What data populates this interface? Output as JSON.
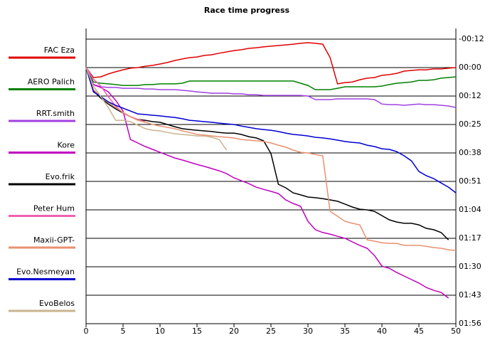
{
  "chart_data": {
    "type": "line",
    "title": "Race time progress",
    "x": [
      0,
      1,
      2,
      3,
      4,
      5,
      6,
      7,
      8,
      9,
      10,
      11,
      12,
      13,
      14,
      15,
      16,
      17,
      18,
      19,
      20,
      21,
      22,
      23,
      24,
      25,
      26,
      27,
      28,
      29,
      30,
      31,
      32,
      33,
      34,
      35,
      36,
      37,
      38,
      39,
      40,
      41,
      42,
      43,
      44,
      45,
      46,
      47,
      48,
      49,
      50
    ],
    "xlim": [
      0,
      50
    ],
    "xticks": [
      0,
      5,
      10,
      15,
      20,
      25,
      30,
      35,
      40,
      45,
      50
    ],
    "ylim": [
      -12.9,
      116.1
    ],
    "y_reversed": true,
    "y_axis_side": "right",
    "grid": true,
    "legend": "left",
    "yticks": [
      {
        "value": -12.9,
        "label": "-00:12"
      },
      {
        "value": 0,
        "label": "00:00"
      },
      {
        "value": 12.9,
        "label": "00:12"
      },
      {
        "value": 25.8,
        "label": "00:25"
      },
      {
        "value": 38.7,
        "label": "00:38"
      },
      {
        "value": 51.6,
        "label": "00:51"
      },
      {
        "value": 64.5,
        "label": "01:04"
      },
      {
        "value": 77.4,
        "label": "01:17"
      },
      {
        "value": 90.3,
        "label": "01:30"
      },
      {
        "value": 103.2,
        "label": "01:43"
      },
      {
        "value": 116.1,
        "label": "01:56"
      }
    ],
    "series": [
      {
        "name": "FAC Eza",
        "color": "#e00000",
        "values": [
          0,
          4.5,
          4.2,
          2.9,
          1.9,
          1.0,
          0.3,
          0,
          -0.6,
          -1.0,
          -1.6,
          -2.3,
          -3.2,
          -3.9,
          -4.5,
          -4.8,
          -5.5,
          -5.8,
          -6.5,
          -7.1,
          -7.7,
          -8.1,
          -8.7,
          -9.0,
          -9.4,
          -9.7,
          -10.0,
          -10.3,
          -10.6,
          -11.0,
          -11.3,
          -11.0,
          -10.6,
          -4.5,
          7.4,
          6.8,
          6.5,
          5.5,
          4.8,
          4.5,
          3.5,
          3.2,
          2.6,
          1.6,
          1.3,
          1.0,
          1.0,
          0.6,
          0.6,
          0.3,
          0
        ]
      },
      {
        "name": "AERO  Palich",
        "color": "#008000",
        "values": [
          0,
          6.5,
          7.1,
          7.4,
          7.7,
          8.1,
          8.1,
          8.1,
          7.7,
          7.7,
          7.4,
          7.4,
          7.4,
          7.1,
          6.1,
          6.1,
          6.1,
          6.1,
          6.1,
          6.1,
          6.1,
          6.1,
          6.1,
          6.1,
          6.1,
          6.1,
          6.1,
          6.1,
          6.1,
          7.1,
          8.1,
          10.0,
          10.0,
          10.0,
          9.4,
          8.7,
          8.7,
          8.7,
          8.7,
          8.7,
          8.4,
          7.7,
          7.1,
          6.8,
          6.5,
          5.8,
          5.8,
          5.5,
          4.8,
          4.5,
          4.2
        ]
      },
      {
        "name": "RRT.smith",
        "color": "#a040e0",
        "values": [
          0,
          7.7,
          8.7,
          9.0,
          9.0,
          9.4,
          9.4,
          9.4,
          9.7,
          9.7,
          10.0,
          10.0,
          10.0,
          10.3,
          10.6,
          11.0,
          11.3,
          11.6,
          11.6,
          11.6,
          11.9,
          11.9,
          12.3,
          12.3,
          12.6,
          12.6,
          12.6,
          12.6,
          12.6,
          12.6,
          12.9,
          14.5,
          14.5,
          14.5,
          14.2,
          14.2,
          14.2,
          14.2,
          14.2,
          14.5,
          16.5,
          16.8,
          16.8,
          17.1,
          16.8,
          16.5,
          16.8,
          16.8,
          17.1,
          17.4,
          18.1
        ]
      },
      {
        "name": "Kore",
        "color": "#c000c0",
        "values": [
          0,
          7.7,
          9.0,
          11.0,
          14.8,
          19.7,
          32.6,
          34.2,
          35.8,
          37.1,
          38.4,
          39.7,
          41.0,
          41.9,
          42.9,
          43.9,
          44.8,
          45.8,
          46.8,
          48.1,
          50.0,
          51.3,
          52.6,
          54.2,
          55.2,
          56.1,
          57.1,
          60.0,
          61.6,
          62.9,
          69.7,
          73.5,
          74.8,
          75.5,
          76.5,
          77.4,
          79.0,
          80.6,
          81.9,
          85.2,
          90.0,
          91.0,
          92.9,
          94.5,
          96.1,
          97.7,
          99.7,
          101.0,
          101.9,
          104.5,
          null
        ]
      },
      {
        "name": "Evo.frik",
        "color": "#000000",
        "values": [
          0,
          10.6,
          13.9,
          16.5,
          18.7,
          20.6,
          22.3,
          23.5,
          23.9,
          24.5,
          24.8,
          25.8,
          26.8,
          27.7,
          28.1,
          28.4,
          28.7,
          29.0,
          29.4,
          29.7,
          29.7,
          30.3,
          31.3,
          31.9,
          33.2,
          39.0,
          52.9,
          54.5,
          56.8,
          57.7,
          58.7,
          59.0,
          59.4,
          60.0,
          60.6,
          61.9,
          63.2,
          64.2,
          64.5,
          65.2,
          67.1,
          69.0,
          70.0,
          70.6,
          70.6,
          71.3,
          72.9,
          73.5,
          74.8,
          78.1,
          null
        ]
      },
      {
        "name": "Peter Hum",
        "color": "#f060b0",
        "values": [
          0,
          5.2,
          8.4,
          13.2,
          17.4,
          20.6,
          22.3,
          23.5,
          24.5,
          null,
          null,
          null,
          null,
          null,
          null,
          null,
          null,
          null,
          null,
          null,
          null,
          null,
          null,
          null,
          null,
          null,
          null,
          null,
          null,
          null,
          null,
          null,
          null,
          null,
          null,
          null,
          null,
          null,
          null,
          null,
          null,
          null,
          null,
          null,
          null,
          null,
          null,
          null,
          null,
          null,
          null
        ]
      },
      {
        "name": "Maxii-GPT-",
        "color": "#e89070",
        "values": [
          0,
          10.0,
          13.2,
          15.8,
          18.1,
          20.3,
          22.3,
          23.9,
          24.8,
          25.8,
          26.5,
          27.1,
          27.7,
          28.7,
          29.4,
          30.3,
          30.6,
          31.0,
          31.3,
          31.6,
          31.9,
          32.6,
          32.9,
          33.2,
          33.5,
          34.2,
          35.2,
          36.1,
          37.4,
          38.4,
          38.7,
          39.4,
          40.0,
          65.2,
          67.4,
          69.7,
          70.6,
          71.3,
          78.1,
          78.7,
          79.4,
          79.7,
          79.7,
          80.6,
          80.6,
          80.6,
          81.0,
          81.6,
          81.9,
          82.6,
          82.9
        ]
      },
      {
        "name": "Evo.Nesmeyan",
        "color": "#0000d0",
        "values": [
          0,
          11.0,
          13.2,
          15.5,
          17.1,
          18.4,
          19.7,
          21.0,
          21.3,
          21.6,
          21.9,
          22.3,
          22.6,
          23.2,
          23.9,
          24.2,
          24.5,
          24.8,
          25.2,
          25.5,
          25.8,
          26.5,
          27.1,
          27.7,
          28.1,
          28.4,
          29.0,
          29.7,
          30.3,
          30.6,
          31.0,
          31.6,
          31.9,
          32.3,
          32.9,
          33.5,
          33.9,
          34.2,
          35.2,
          35.8,
          36.8,
          37.1,
          38.1,
          40.0,
          42.3,
          47.1,
          49.0,
          50.3,
          52.3,
          54.2,
          56.8
        ]
      },
      {
        "name": "EvoBelos",
        "color": "#c8b48c",
        "values": [
          0,
          8.4,
          13.2,
          18.1,
          23.9,
          23.9,
          24.5,
          26.1,
          27.7,
          28.4,
          28.7,
          29.4,
          30.0,
          30.3,
          30.6,
          31.0,
          31.0,
          31.6,
          32.6,
          37.4,
          null,
          null,
          null,
          null,
          null,
          null,
          null,
          null,
          null,
          null,
          null,
          null,
          null,
          null,
          null,
          null,
          null,
          null,
          null,
          null,
          null,
          null,
          null,
          null,
          null,
          null,
          null,
          null,
          null,
          null,
          null
        ]
      }
    ]
  }
}
